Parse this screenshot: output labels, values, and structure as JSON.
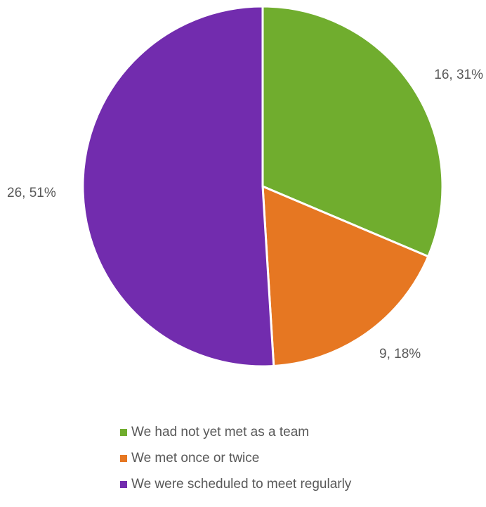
{
  "chart_data": {
    "type": "pie",
    "title": "",
    "slices": [
      {
        "label": "We had not yet met as a team",
        "value": 16,
        "percent": 31,
        "data_label": "16, 31%",
        "color": "#70ad2e"
      },
      {
        "label": "We met once or twice",
        "value": 9,
        "percent": 18,
        "data_label": "9, 18%",
        "color": "#e67722"
      },
      {
        "label": "We were scheduled to meet regularly",
        "value": 26,
        "percent": 51,
        "data_label": "26, 51%",
        "color": "#722cae"
      }
    ],
    "legend": {
      "placement": "bottom"
    }
  }
}
